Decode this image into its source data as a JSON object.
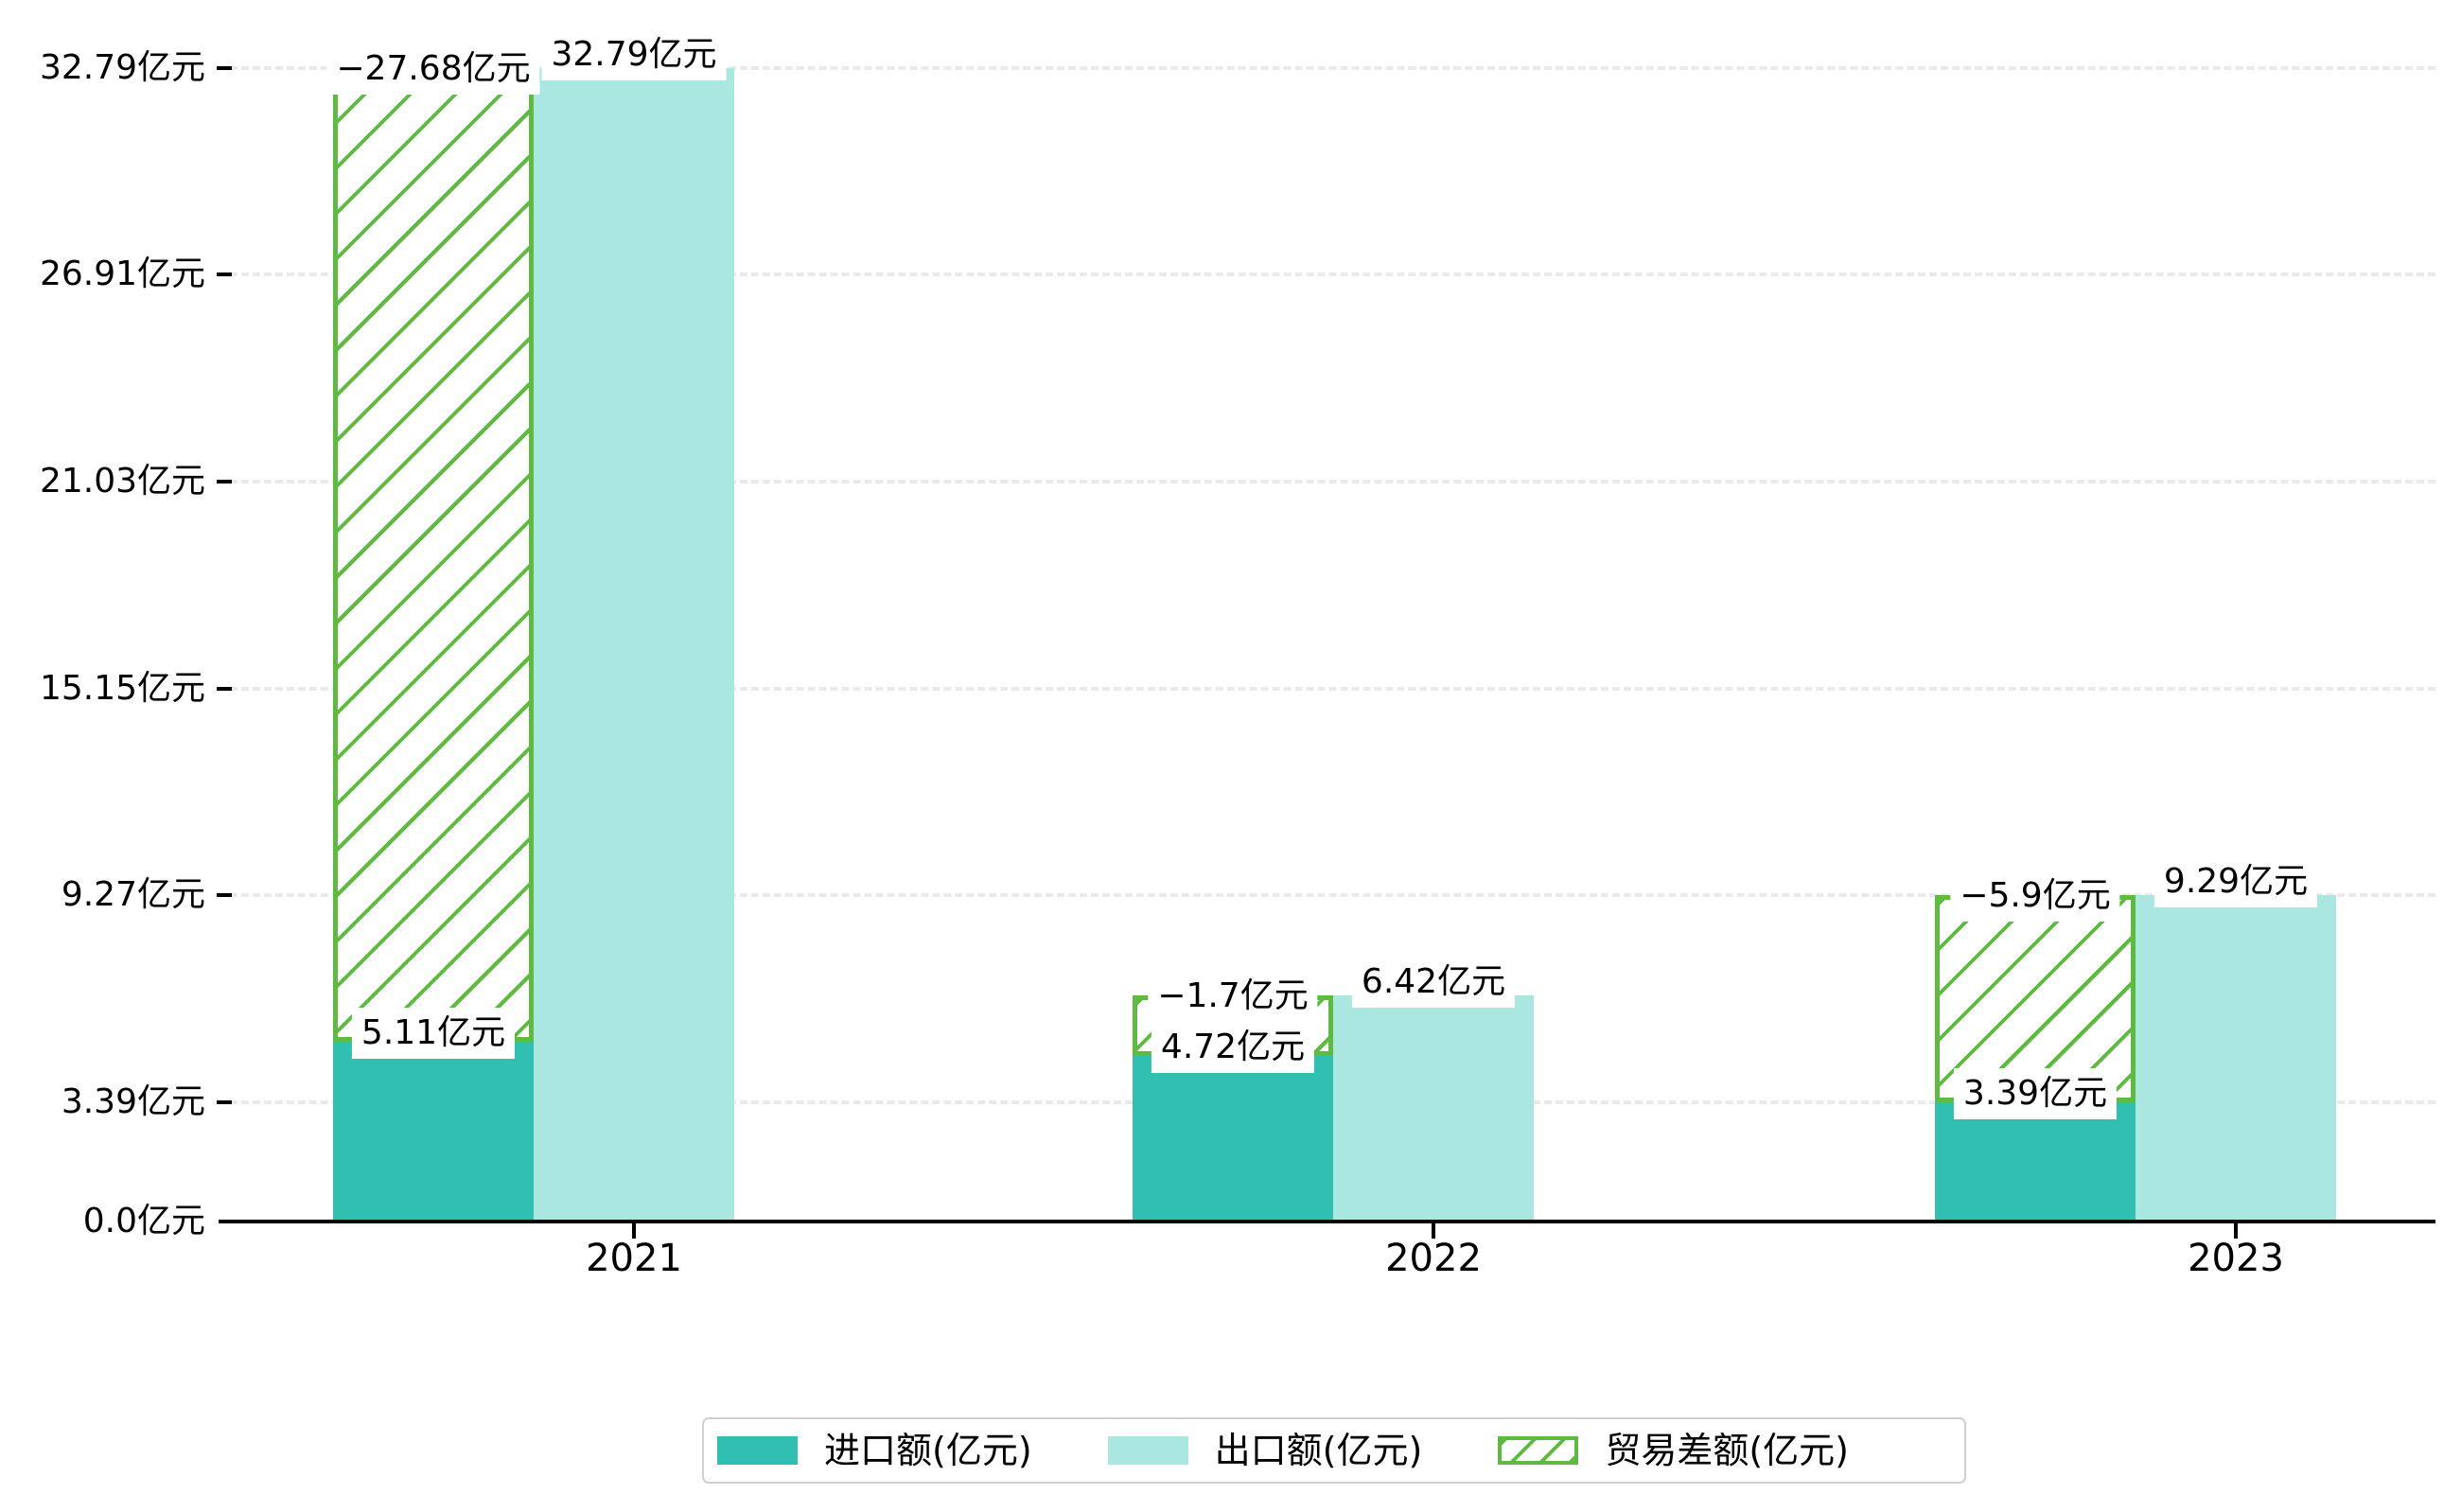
{
  "chart_data": {
    "type": "bar",
    "title": "",
    "categories": [
      "2021",
      "2022",
      "2023"
    ],
    "series": [
      {
        "name": "进口额(亿元)",
        "role": "import",
        "color": "#31bfb2",
        "values": [
          5.11,
          4.72,
          3.39
        ],
        "data_labels": [
          "5.11亿元",
          "4.72亿元",
          "3.39亿元"
        ]
      },
      {
        "name": "出口额(亿元)",
        "role": "export",
        "color": "#abe7e1",
        "values": [
          32.79,
          6.42,
          9.29
        ],
        "data_labels": [
          "32.79亿元",
          "6.42亿元",
          "9.29亿元"
        ]
      },
      {
        "name": "贸易差额(亿元)",
        "role": "trade-balance",
        "color": "#5eba41",
        "style": "green-diagonal-hatch-outline",
        "values": [
          -27.68,
          -1.7,
          -5.9
        ],
        "data_labels": [
          "−27.68亿元",
          "−1.7亿元",
          "−5.9亿元"
        ],
        "bar_spans": [
          [
            5.11,
            32.79
          ],
          [
            4.72,
            6.42
          ],
          [
            3.39,
            9.29
          ]
        ]
      }
    ],
    "y_axis": {
      "tick_labels": [
        "0.0亿元",
        "3.39亿元",
        "9.27亿元",
        "15.15亿元",
        "21.03亿元",
        "26.91亿元",
        "32.79亿元"
      ],
      "tick_values": [
        0,
        3.39,
        9.27,
        15.15,
        21.03,
        26.91,
        32.79
      ],
      "range": [
        0,
        32.79
      ],
      "grid": "dashed"
    },
    "x_axis": {
      "tick_labels": [
        "2021",
        "2022",
        "2023"
      ]
    },
    "legend": {
      "position": "bottom",
      "labels": [
        "进口额(亿元)",
        "出口额(亿元)",
        "贸易差额(亿元)"
      ]
    }
  }
}
